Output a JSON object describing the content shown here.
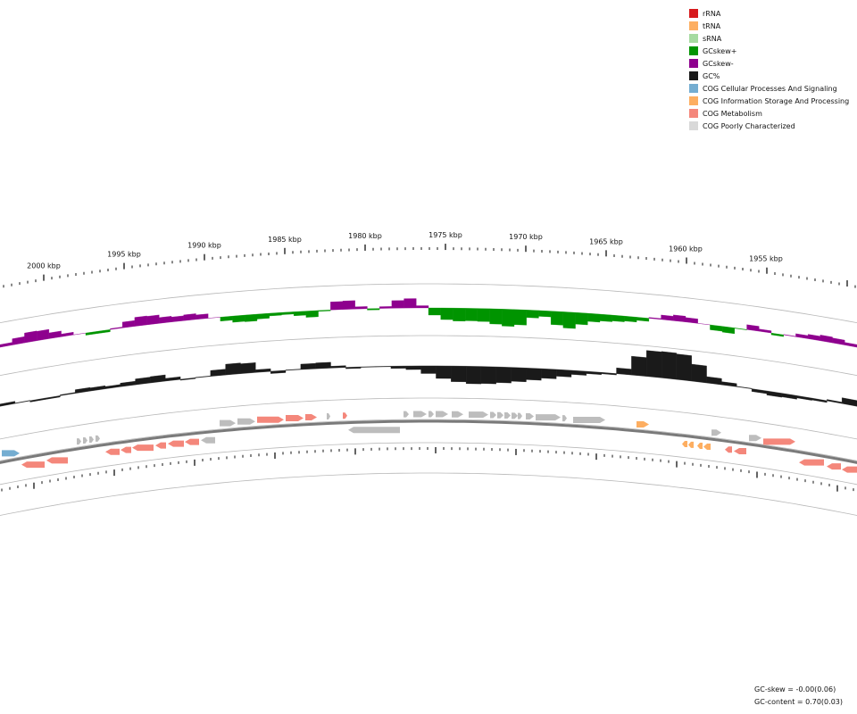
{
  "legend": {
    "items": [
      {
        "label": "rRNA",
        "color": "#d7191c",
        "icon": "square-swatch"
      },
      {
        "label": "tRNA",
        "color": "#fdae61",
        "icon": "square-swatch"
      },
      {
        "label": "sRNA",
        "color": "#a6dba0",
        "icon": "square-swatch"
      },
      {
        "label": "GCskew+",
        "color": "#009400",
        "icon": "square-swatch"
      },
      {
        "label": "GCskew-",
        "color": "#8e008e",
        "icon": "square-swatch"
      },
      {
        "label": "GC%",
        "color": "#1a1a1a",
        "icon": "square-swatch"
      },
      {
        "label": "COG Cellular Processes And Signaling",
        "color": "#74add1",
        "icon": "square-swatch"
      },
      {
        "label": "COG Information Storage And Processing",
        "color": "#fdae61",
        "icon": "square-swatch"
      },
      {
        "label": "COG Metabolism",
        "color": "#f4877b",
        "icon": "square-swatch"
      },
      {
        "label": "COG Poorly Characterized",
        "color": "#d9d9d9",
        "icon": "square-swatch"
      }
    ]
  },
  "axis": {
    "unit": "kbp",
    "major_labels": [
      "2000 kbp",
      "1995 kbp",
      "1990 kbp",
      "1985 kbp",
      "1980 kbp",
      "1975 kbp",
      "1970 kbp",
      "1965 kbp",
      "1960 kbp",
      "1955 kbp"
    ]
  },
  "stats": {
    "gc_skew": "GC-skew = -0.00(0.06)",
    "gc_content": "GC-content = 0.70(0.03)"
  },
  "colors": {
    "gc_skew_pos": "#009400",
    "gc_skew_neg": "#8e008e",
    "gc_content": "#1a1a1a",
    "backbone": "#7a7a7a",
    "guide_line": "#b8b8b8",
    "cog_cellular": "#74add1",
    "cog_information": "#fdae61",
    "cog_metabolism": "#f4877b",
    "cog_poor": "#bdbdbd"
  }
}
